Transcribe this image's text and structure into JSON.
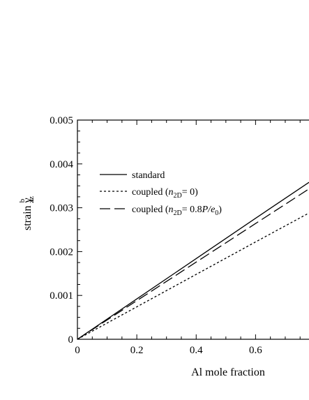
{
  "chart_data": {
    "type": "line",
    "xlabel": "Al mole fraction",
    "ylabel": {
      "base": "strain ",
      "symbol": "γ",
      "sup": "b",
      "sub": "zz"
    },
    "xlim": [
      0,
      0.78
    ],
    "ylim": [
      0,
      0.005
    ],
    "x_ticks": [
      {
        "value": 0,
        "label": "0"
      },
      {
        "value": 0.2,
        "label": "0.2"
      },
      {
        "value": 0.4,
        "label": "0.4"
      },
      {
        "value": 0.6,
        "label": "0.6"
      }
    ],
    "y_ticks": [
      {
        "value": 0,
        "label": "0"
      },
      {
        "value": 0.001,
        "label": "0.001"
      },
      {
        "value": 0.002,
        "label": "0.002"
      },
      {
        "value": 0.003,
        "label": "0.003"
      },
      {
        "value": 0.004,
        "label": "0.004"
      },
      {
        "value": 0.005,
        "label": "0.005"
      }
    ],
    "series": [
      {
        "name": "standard",
        "legend": {
          "pre": "standard"
        },
        "style": "solid",
        "x": [
          0,
          0.2,
          0.4,
          0.6,
          0.78
        ],
        "y": [
          0,
          0.00092,
          0.00184,
          0.00276,
          0.00358
        ]
      },
      {
        "name": "coupled (n2D = 0)",
        "legend": {
          "pre": "coupled (",
          "italic": "n",
          "sub": "2D",
          "post": "= 0)"
        },
        "style": "dotted",
        "x": [
          0,
          0.2,
          0.4,
          0.6,
          0.78
        ],
        "y": [
          0,
          0.00074,
          0.00148,
          0.00222,
          0.00288
        ]
      },
      {
        "name": "coupled (n2D = 0.8P/e0)",
        "legend": {
          "pre": "coupled (",
          "italic": "n",
          "sub": "2D",
          "mid": "= 0.8",
          "italic2": "P/e",
          "sub2": "0",
          "post": ")"
        },
        "style": "dashed",
        "x": [
          0,
          0.2,
          0.4,
          0.6,
          0.78
        ],
        "y": [
          0,
          0.00088,
          0.00176,
          0.00264,
          0.00343
        ]
      }
    ],
    "legend_position": "upper-left",
    "grid": false
  }
}
